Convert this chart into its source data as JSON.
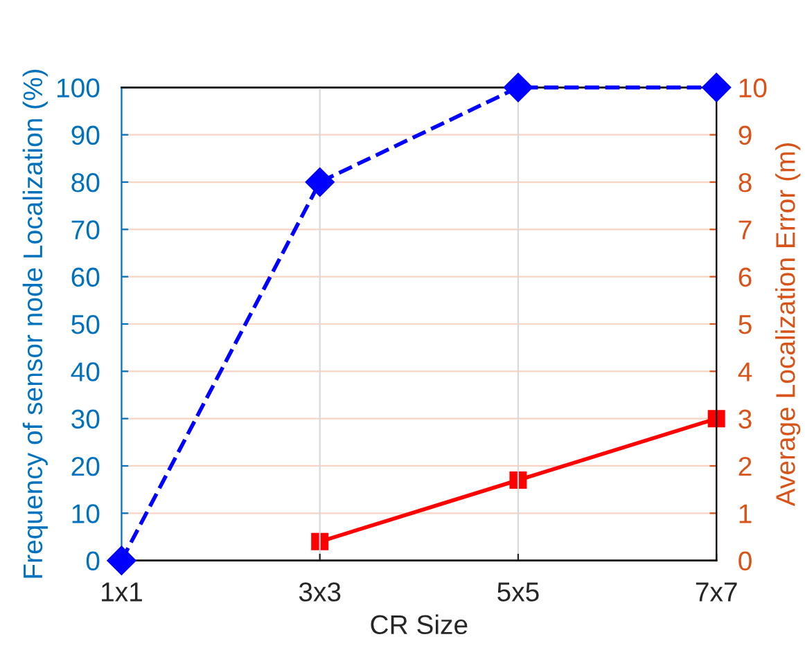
{
  "chart_data": {
    "type": "line",
    "xlabel": "CR Size",
    "ylabel": "Frequency of sensor node Localization (%)",
    "y2label": "Average Localization Error (m)",
    "categories": [
      "1x1",
      "3x3",
      "5x5",
      "7x7"
    ],
    "series": [
      {
        "color": "#0000ff",
        "values": [
          0,
          80,
          100,
          100
        ],
        "marker": "diamond",
        "line_style": "dashed"
      },
      {
        "color": "#ff0000",
        "values": [
          null,
          0.4,
          1.7,
          3.0
        ],
        "marker": "square",
        "line_style": "solid",
        "axis": "y2"
      }
    ],
    "ylim": [
      0,
      100
    ],
    "yticks": [
      0,
      10,
      20,
      30,
      40,
      50,
      60,
      70,
      80,
      90,
      100
    ],
    "y2lim": [
      0,
      10
    ],
    "y2ticks": [
      0,
      1,
      2,
      3,
      4,
      5,
      6,
      7,
      8,
      9,
      10
    ],
    "grid": true
  }
}
